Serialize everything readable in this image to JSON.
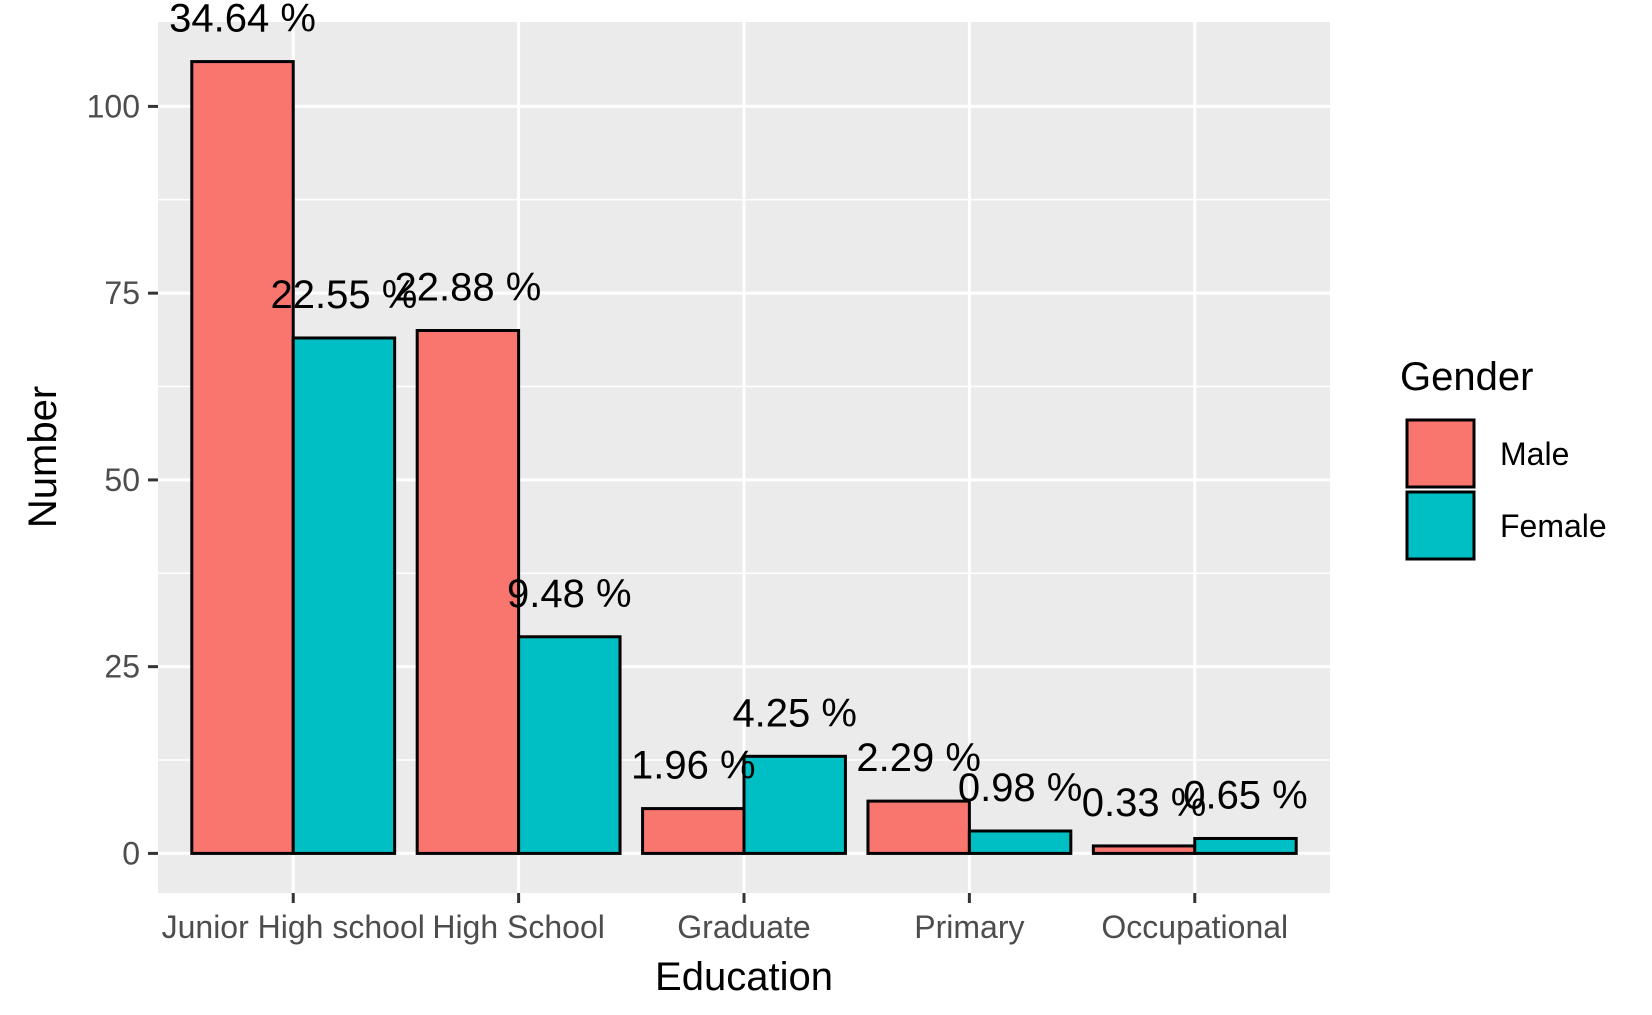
{
  "chart_data": {
    "type": "bar",
    "xlabel": "Education",
    "ylabel": "Number",
    "categories": [
      "Junior High school",
      "High School",
      "Graduate",
      "Primary",
      "Occupational"
    ],
    "series": [
      {
        "name": "Male",
        "color": "#F8766D",
        "values": [
          106,
          70,
          6,
          7,
          1
        ],
        "labels": [
          "34.64 %",
          "22.88 %",
          "1.96 %",
          "2.29 %",
          "0.33 %"
        ]
      },
      {
        "name": "Female",
        "color": "#00BFC4",
        "values": [
          69,
          29,
          13,
          3,
          2
        ],
        "labels": [
          "22.55 %",
          "9.48 %",
          "4.25 %",
          "0.98 %",
          "0.65 %"
        ]
      }
    ],
    "ylim": [
      -5.3,
      111.3
    ],
    "yticks": [
      0,
      25,
      50,
      75,
      100
    ],
    "grid": true,
    "panel_background": "#EBEBEB",
    "legend": {
      "title": "Gender",
      "position": "right"
    }
  }
}
